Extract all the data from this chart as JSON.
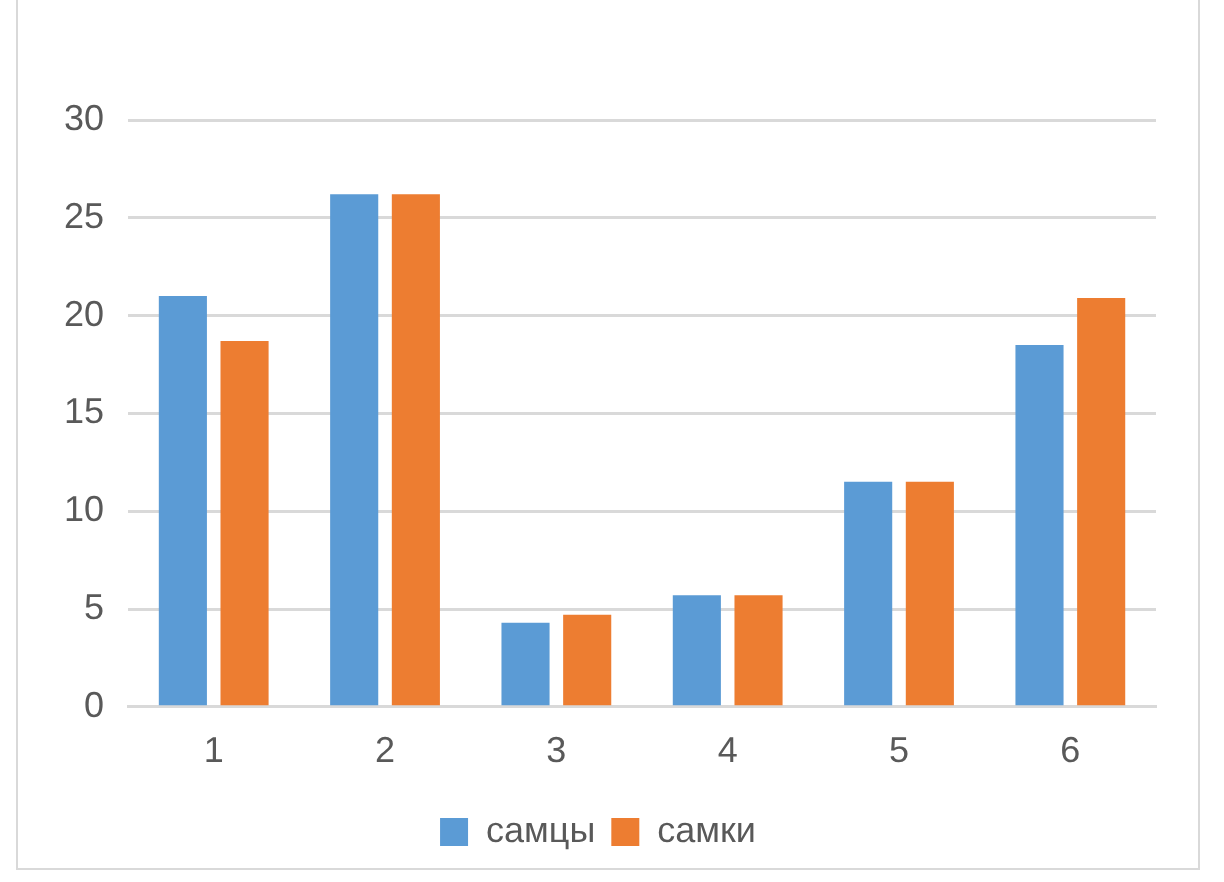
{
  "chart_data": {
    "type": "bar",
    "categories": [
      "1",
      "2",
      "3",
      "4",
      "5",
      "6"
    ],
    "series": [
      {
        "name": "самцы",
        "color": "#5b9bd5",
        "values": [
          21,
          26.2,
          4.3,
          5.7,
          11.5,
          18.5
        ]
      },
      {
        "name": "самки",
        "color": "#ed7d31",
        "values": [
          18.7,
          26.2,
          4.7,
          5.7,
          11.5,
          20.9
        ]
      }
    ],
    "ylim": [
      0,
      30
    ],
    "yticks": [
      0,
      5,
      10,
      15,
      20,
      25,
      30
    ],
    "grid": "y",
    "legend": "bottom"
  }
}
